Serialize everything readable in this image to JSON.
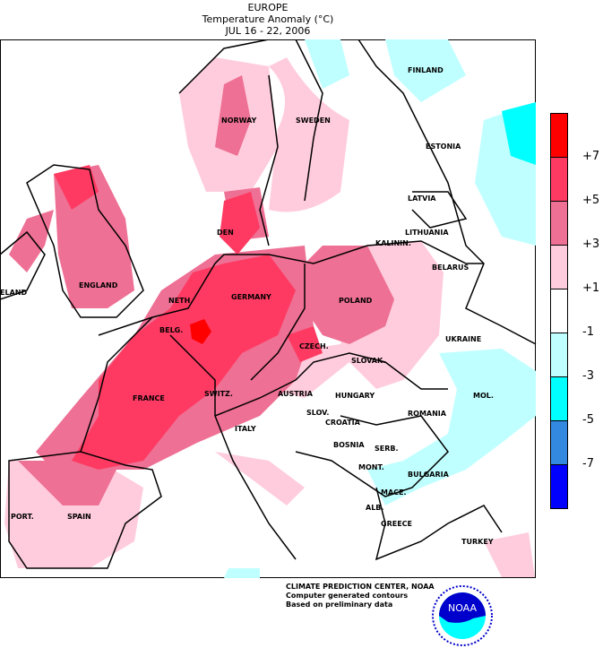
{
  "header": {
    "region": "EUROPE",
    "title": "Temperature Anomaly (°C)",
    "dates": "JUL 16 - 22, 2006"
  },
  "legend": {
    "ticks": [
      "+7",
      "+5",
      "+3",
      "+1",
      "-1",
      "-3",
      "-5",
      "-7"
    ],
    "colors": [
      "#FF0000",
      "#FF3A62",
      "#EE7094",
      "#FFCCDD",
      "#FFFFFF",
      "#C0FFFF",
      "#00FFFF",
      "#3388E0",
      "#0000FF"
    ]
  },
  "countries": [
    "FINLAND",
    "NORWAY",
    "SWEDEN",
    "ESTONIA",
    "LATVIA",
    "LITHUANIA",
    "KALININ.",
    "DEN",
    "BELARUS",
    "ELAND",
    "ENGLAND",
    "NETH.",
    "GERMANY",
    "POLAND",
    "BELG.",
    "CZECH.",
    "SLOVAK.",
    "UKRAINE",
    "FRANCE",
    "SWITZ.",
    "AUSTRIA",
    "HUNGARY",
    "ROMANIA",
    "MOL.",
    "SLOV.",
    "CROATIA",
    "ITALY",
    "BOSNIA",
    "SERB.",
    "MONT.",
    "BULGARIA",
    "MACE.",
    "ALB.",
    "GREECE",
    "TURKEY",
    "PORT.",
    "SPAIN"
  ],
  "credits": {
    "line1": "CLIMATE PREDICTION CENTER, NOAA",
    "line2": "Computer generated contours",
    "line3": "Based on preliminary data",
    "logo_text": "NOAA"
  }
}
